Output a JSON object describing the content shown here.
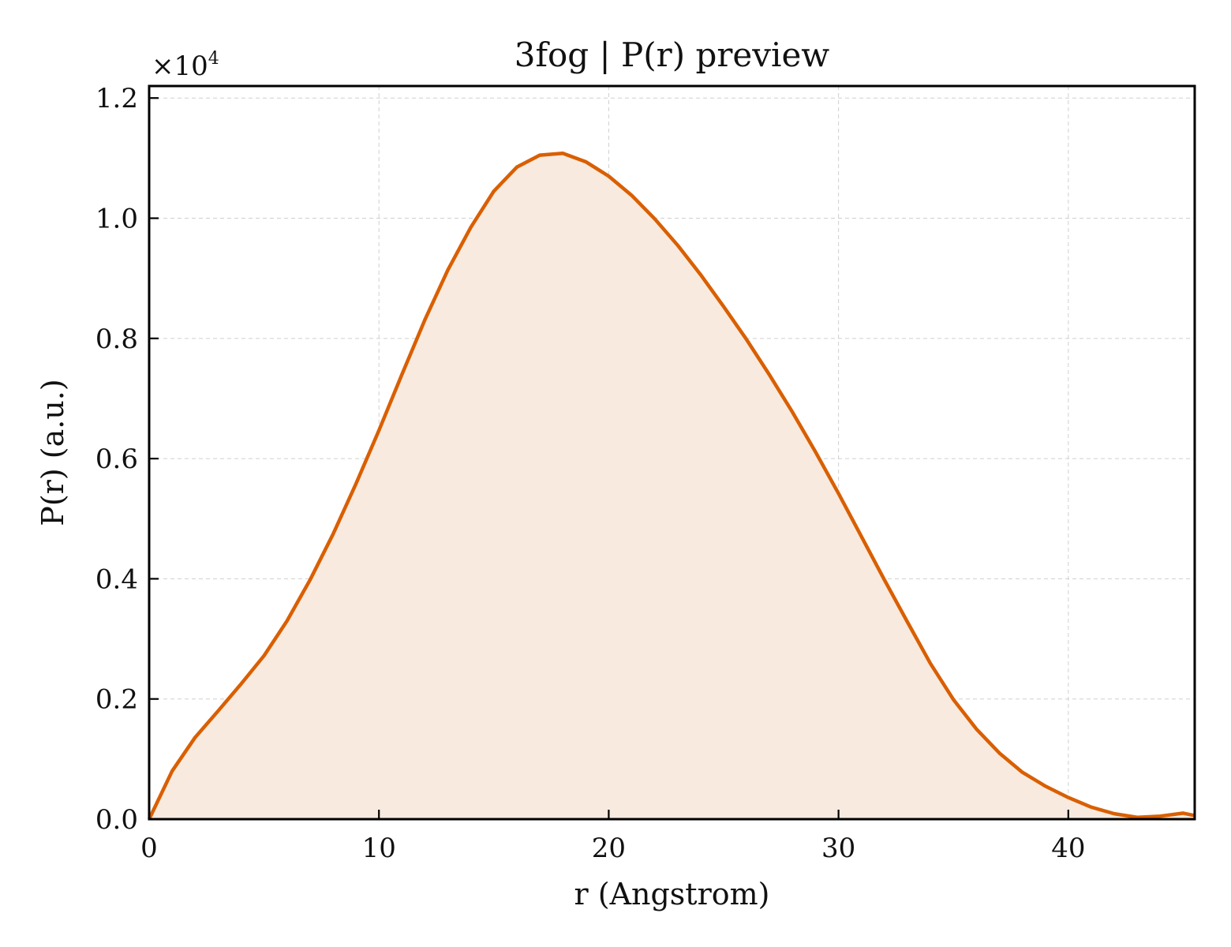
{
  "chart_data": {
    "type": "area",
    "title": "3fog | P(r) preview",
    "xlabel": "r (Angstrom)",
    "ylabel": "P(r) (a.u.)",
    "y_offset_label": "×10",
    "y_offset_exponent": "4",
    "xlim": [
      0,
      45.5
    ],
    "ylim": [
      0,
      1.22
    ],
    "xticks": [
      0,
      10,
      20,
      30,
      40
    ],
    "xtick_labels": [
      "0",
      "10",
      "20",
      "30",
      "40"
    ],
    "yticks": [
      0.0,
      0.2,
      0.4,
      0.6,
      0.8,
      1.0,
      1.2
    ],
    "ytick_labels": [
      "0.0",
      "0.2",
      "0.4",
      "0.6",
      "0.8",
      "1.0",
      "1.2"
    ],
    "grid": true,
    "legend": "none",
    "line_color": "#d95f02",
    "fill_color": "#f8eade",
    "series": [
      {
        "x": [
          0,
          1,
          2,
          3,
          4,
          5,
          6,
          7,
          8,
          9,
          10,
          11,
          12,
          13,
          14,
          15,
          16,
          17,
          18,
          19,
          20,
          21,
          22,
          23,
          24,
          25,
          26,
          27,
          28,
          29,
          30,
          31,
          32,
          33,
          34,
          35,
          36,
          37,
          38,
          39,
          40,
          41,
          42,
          43,
          44,
          45,
          45.5
        ],
        "y": [
          0.0,
          0.08,
          0.136,
          0.18,
          0.225,
          0.272,
          0.33,
          0.398,
          0.474,
          0.558,
          0.647,
          0.74,
          0.831,
          0.914,
          0.985,
          1.045,
          1.085,
          1.105,
          1.108,
          1.094,
          1.07,
          1.038,
          0.999,
          0.955,
          0.906,
          0.853,
          0.798,
          0.739,
          0.677,
          0.611,
          0.542,
          0.47,
          0.398,
          0.328,
          0.259,
          0.199,
          0.15,
          0.11,
          0.078,
          0.055,
          0.036,
          0.02,
          0.009,
          0.003,
          0.005,
          0.01,
          0.006
        ]
      }
    ]
  }
}
